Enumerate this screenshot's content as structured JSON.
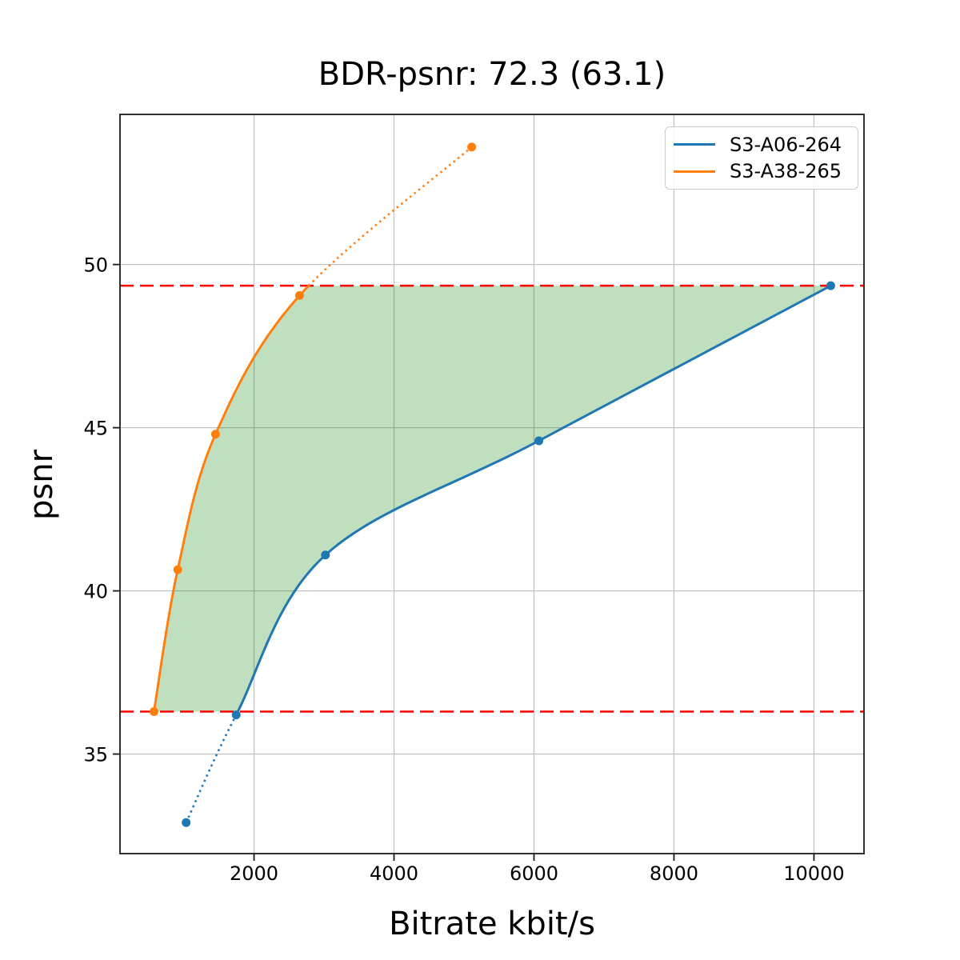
{
  "chart_data": {
    "type": "line",
    "title": "BDR-psnr: 72.3 (63.1)",
    "xlabel": "Bitrate kbit/s",
    "ylabel": "psnr",
    "xlim": [
      85,
      10715
    ],
    "ylim": [
      31.95,
      54.6
    ],
    "xticks": [
      2000,
      4000,
      6000,
      8000,
      10000
    ],
    "yticks": [
      35,
      40,
      45,
      50
    ],
    "grid": true,
    "legend": {
      "position": "upper-right"
    },
    "series": [
      {
        "name": "S3-A06-264",
        "color": "#1f77b4",
        "points": [
          [
            1030,
            32.9
          ],
          [
            1745,
            36.2
          ],
          [
            3020,
            41.1
          ],
          [
            6070,
            44.6
          ],
          [
            10240,
            49.35
          ]
        ]
      },
      {
        "name": "S3-A38-265",
        "color": "#ff7f0e",
        "points": [
          [
            570,
            36.3
          ],
          [
            910,
            40.65
          ],
          [
            1450,
            44.8
          ],
          [
            2650,
            49.05
          ],
          [
            5110,
            53.6
          ]
        ]
      }
    ],
    "ref_lines": {
      "color": "#ff0000",
      "style": "dashed",
      "psnr_values": [
        36.3,
        49.35
      ]
    },
    "fill_between": {
      "color": "#008000",
      "opacity": 0.25
    },
    "line_style_note": "solid inside ref-line psnr range, dotted outside"
  }
}
